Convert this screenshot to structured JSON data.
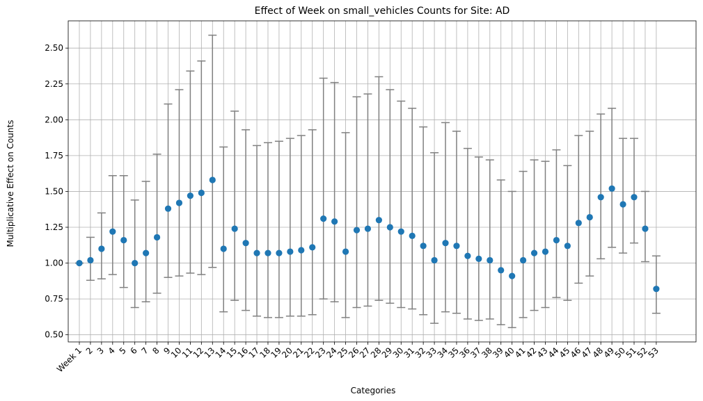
{
  "chart_data": {
    "type": "scatter",
    "title": "Effect of Week on small_vehicles Counts for Site: AD",
    "xlabel": "Categories",
    "ylabel": "Multiplicative Effect on Counts",
    "ylim": [
      0.45,
      2.69
    ],
    "yticks": [
      "0.50",
      "0.75",
      "1.00",
      "1.25",
      "1.50",
      "1.75",
      "2.00",
      "2.25",
      "2.50"
    ],
    "grid": true,
    "categories": [
      "Week 1",
      "2",
      "3",
      "4",
      "5",
      "6",
      "7",
      "8",
      "9",
      "10",
      "11",
      "12",
      "13",
      "14",
      "15",
      "16",
      "17",
      "18",
      "19",
      "20",
      "21",
      "22",
      "23",
      "24",
      "25",
      "26",
      "27",
      "28",
      "29",
      "30",
      "31",
      "32",
      "33",
      "34",
      "35",
      "36",
      "37",
      "38",
      "39",
      "40",
      "41",
      "42",
      "43",
      "44",
      "45",
      "46",
      "47",
      "48",
      "49",
      "50",
      "51",
      "52",
      "53"
    ],
    "series": [
      {
        "values": [
          1.0,
          1.02,
          1.1,
          1.22,
          1.16,
          1.0,
          1.07,
          1.18,
          1.38,
          1.42,
          1.47,
          1.49,
          1.58,
          1.1,
          1.24,
          1.14,
          1.07,
          1.07,
          1.07,
          1.08,
          1.09,
          1.11,
          1.31,
          1.29,
          1.08,
          1.23,
          1.24,
          1.3,
          1.25,
          1.22,
          1.19,
          1.12,
          1.02,
          1.14,
          1.12,
          1.05,
          1.03,
          1.02,
          0.95,
          0.91,
          1.02,
          1.07,
          1.08,
          1.16,
          1.12,
          1.28,
          1.32,
          1.46,
          1.52,
          1.41,
          1.46,
          1.24,
          0.82
        ],
        "lower": [
          1.0,
          0.88,
          0.89,
          0.92,
          0.83,
          0.69,
          0.73,
          0.79,
          0.9,
          0.91,
          0.93,
          0.92,
          0.97,
          0.66,
          0.74,
          0.67,
          0.63,
          0.62,
          0.62,
          0.63,
          0.63,
          0.64,
          0.75,
          0.73,
          0.62,
          0.69,
          0.7,
          0.74,
          0.72,
          0.69,
          0.68,
          0.64,
          0.58,
          0.66,
          0.65,
          0.61,
          0.6,
          0.61,
          0.57,
          0.55,
          0.62,
          0.67,
          0.69,
          0.76,
          0.74,
          0.86,
          0.91,
          1.03,
          1.11,
          1.07,
          1.14,
          1.01,
          0.65
        ],
        "upper": [
          1.0,
          1.18,
          1.35,
          1.61,
          1.61,
          1.44,
          1.57,
          1.76,
          2.11,
          2.21,
          2.34,
          2.41,
          2.59,
          1.81,
          2.06,
          1.93,
          1.82,
          1.84,
          1.85,
          1.87,
          1.89,
          1.93,
          2.29,
          2.26,
          1.91,
          2.16,
          2.18,
          2.3,
          2.21,
          2.13,
          2.08,
          1.95,
          1.77,
          1.98,
          1.92,
          1.8,
          1.74,
          1.72,
          1.58,
          1.5,
          1.64,
          1.72,
          1.71,
          1.79,
          1.68,
          1.89,
          1.92,
          2.04,
          2.08,
          1.87,
          1.87,
          1.5,
          1.05
        ]
      }
    ],
    "colors": {
      "point": "#1f77b4",
      "errorbar": "#808080",
      "grid": "#b0b0b0"
    }
  }
}
